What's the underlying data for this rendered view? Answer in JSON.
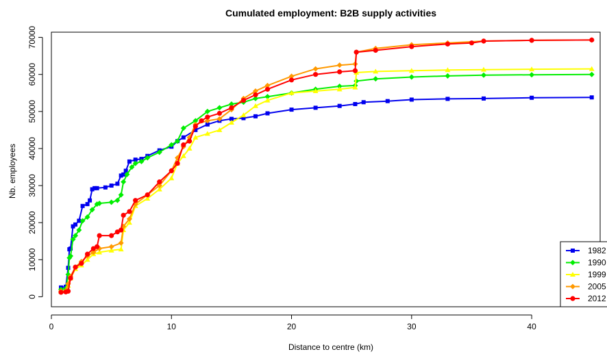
{
  "chart_data": {
    "type": "line",
    "title": "Cumulated employment: B2B supply activities",
    "xlabel": "Distance to centre (km)",
    "ylabel": "Nb. employees",
    "xlim": [
      0,
      45
    ],
    "ylim": [
      0,
      70000
    ],
    "xticks": [
      0,
      10,
      20,
      30,
      40
    ],
    "yticks": [
      0,
      10000,
      20000,
      30000,
      40000,
      50000,
      60000,
      70000
    ],
    "grid": false,
    "legend_position": "bottom-right",
    "series": [
      {
        "name": "1982",
        "color": "#0000ee",
        "marker": "square",
        "x": [
          0.8,
          1.2,
          1.4,
          1.5,
          1.6,
          1.8,
          2.0,
          2.3,
          2.6,
          3.0,
          3.2,
          3.4,
          3.6,
          3.8,
          4.5,
          5.0,
          5.5,
          5.8,
          6.0,
          6.2,
          6.5,
          7.0,
          7.5,
          8.0,
          9.0,
          10.0,
          10.5,
          11.0,
          12.0,
          13.0,
          14.0,
          15.0,
          16.0,
          17.0,
          18.0,
          20.0,
          22.0,
          24.0,
          25.3,
          26.0,
          28.0,
          30.0,
          33.0,
          36.0,
          40.0,
          45.0
        ],
        "y": [
          2500,
          2700,
          7800,
          12800,
          13000,
          19000,
          19500,
          20500,
          24500,
          25000,
          26000,
          29000,
          29300,
          29300,
          29500,
          30000,
          30500,
          32700,
          33000,
          34000,
          36500,
          37000,
          37200,
          38000,
          39500,
          40500,
          42000,
          43000,
          45000,
          46500,
          47500,
          48000,
          48200,
          48700,
          49500,
          50500,
          51000,
          51500,
          52000,
          52500,
          52800,
          53200,
          53400,
          53500,
          53700,
          53800
        ]
      },
      {
        "name": "1990",
        "color": "#00ee00",
        "marker": "diamond",
        "x": [
          0.8,
          1.2,
          1.4,
          1.5,
          1.6,
          1.8,
          2.0,
          2.3,
          2.6,
          3.0,
          3.4,
          3.8,
          4.0,
          5.0,
          5.5,
          5.8,
          6.0,
          6.3,
          6.7,
          7.0,
          7.5,
          8.0,
          9.0,
          10.0,
          10.5,
          11.0,
          12.0,
          13.0,
          14.0,
          15.0,
          16.0,
          17.0,
          18.0,
          20.0,
          22.0,
          24.0,
          25.3,
          25.4,
          27.0,
          30.0,
          33.0,
          36.0,
          40.0,
          45.0
        ],
        "y": [
          2000,
          2200,
          6000,
          10500,
          11000,
          15500,
          16500,
          18000,
          20500,
          21500,
          23500,
          25000,
          25200,
          25500,
          26000,
          27500,
          31000,
          33000,
          35000,
          36000,
          36500,
          37500,
          39000,
          41000,
          42000,
          45500,
          47500,
          50000,
          51000,
          52000,
          52500,
          53500,
          54000,
          55000,
          56000,
          56800,
          57000,
          58200,
          58800,
          59300,
          59600,
          59800,
          59900,
          60000
        ]
      },
      {
        "name": "1999",
        "color": "#ffff00",
        "marker": "triangle",
        "x": [
          0.8,
          1.2,
          1.4,
          1.6,
          2.0,
          2.5,
          3.0,
          3.5,
          4.0,
          5.0,
          5.8,
          6.0,
          6.5,
          7.0,
          8.0,
          9.0,
          10.0,
          10.5,
          11.0,
          11.5,
          12.0,
          13.0,
          14.0,
          15.0,
          16.0,
          17.0,
          18.0,
          20.0,
          22.0,
          24.0,
          25.3,
          25.4,
          27.0,
          30.0,
          33.0,
          36.0,
          40.0,
          45.0
        ],
        "y": [
          1500,
          1600,
          3000,
          5000,
          7500,
          8500,
          10000,
          11500,
          12000,
          12500,
          12800,
          18000,
          20000,
          24500,
          26500,
          29000,
          32000,
          36000,
          38000,
          40000,
          43000,
          44000,
          45000,
          47000,
          49000,
          51500,
          53000,
          55000,
          55500,
          56000,
          56500,
          60500,
          60800,
          61000,
          61200,
          61300,
          61400,
          61500
        ]
      },
      {
        "name": "2005",
        "color": "#ff9900",
        "marker": "diamond",
        "x": [
          0.8,
          1.2,
          1.4,
          1.6,
          2.0,
          2.5,
          3.0,
          3.5,
          4.0,
          5.0,
          5.8,
          6.0,
          6.5,
          7.0,
          8.0,
          9.0,
          10.0,
          10.5,
          11.0,
          11.5,
          12.0,
          13.0,
          14.0,
          15.0,
          16.0,
          17.0,
          18.0,
          20.0,
          22.0,
          24.0,
          25.3,
          25.4,
          27.0,
          30.0,
          33.0,
          36.0,
          40.0,
          45.0
        ],
        "y": [
          1500,
          1600,
          3500,
          5500,
          8000,
          9500,
          11000,
          12000,
          13000,
          13500,
          14500,
          19000,
          21000,
          25000,
          27500,
          30000,
          34000,
          37500,
          40500,
          43000,
          46500,
          47500,
          48000,
          50500,
          53500,
          55500,
          57000,
          59500,
          61500,
          62500,
          62800,
          66000,
          67000,
          68000,
          68500,
          69000,
          69200,
          69300
        ]
      },
      {
        "name": "2012",
        "color": "#ff0000",
        "marker": "circle",
        "x": [
          0.8,
          1.2,
          1.4,
          1.6,
          2.0,
          2.5,
          3.0,
          3.5,
          3.8,
          4.0,
          5.0,
          5.5,
          5.8,
          6.0,
          6.5,
          7.0,
          8.0,
          9.0,
          10.0,
          10.5,
          11.0,
          11.5,
          12.0,
          12.5,
          13.0,
          14.0,
          15.0,
          16.0,
          17.0,
          18.0,
          20.0,
          22.0,
          24.0,
          25.3,
          25.4,
          27.0,
          30.0,
          33.0,
          35.0,
          36.0,
          40.0,
          45.0
        ],
        "y": [
          1200,
          1300,
          1500,
          5000,
          8000,
          9000,
          11500,
          13000,
          13500,
          16500,
          16500,
          17500,
          18000,
          22000,
          23000,
          26000,
          27500,
          31000,
          34000,
          36000,
          41000,
          42000,
          46000,
          47500,
          48500,
          49500,
          51000,
          53000,
          54500,
          56000,
          58500,
          60000,
          60700,
          61000,
          66000,
          66500,
          67500,
          68200,
          68500,
          69000,
          69200,
          69300
        ]
      }
    ]
  }
}
